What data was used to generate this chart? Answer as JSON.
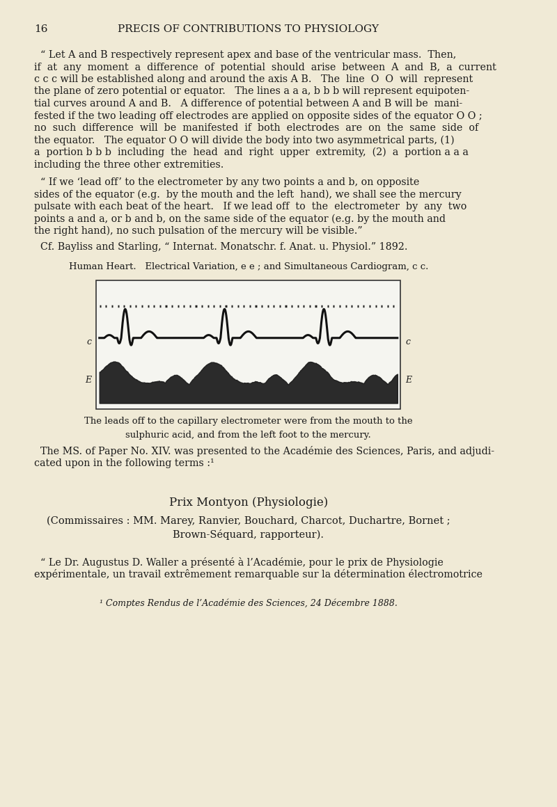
{
  "bg_color": "#f0ead6",
  "text_color": "#1a1a1a",
  "page_number": "16",
  "header": "PRECIS OF CONTRIBUTIONS TO PHYSIOLOGY",
  "para1": "\"Let A and B respectively represent apex and base of the ventricular mass.  Then,\nif  at  any  moment  a  difference  of  potential  should  arise  between  A  and  B,  a  current\nc c c will be established along and around the axis A B.   The  line  O  O  will  represent\nthe plane of zero potential or equator.   The lines a a a, b b b will represent equipoten-\ntial curves around A and B.   A difference of potential between A and B will be  mani-\nfested if the two leading off electrodes are applied on opposite sides of the equator O O ;\nno  such  difference  will  be  manifested  if  both  electrodes  are  on  the  same  side  of\nthe equator.   The equator O O will divide the body into two asymmetrical parts, (1)\na  portion b b b  including  the  head  and  right  upper  extremity,  (2)  a  portion a a a\nincluding the three other extremities.",
  "para2": "\"If we ‘lead off’ to the electrometer by any two points a and b, on opposite\nsides of the equator (e.g.  by the mouth and the left  hand), we shall see the mercury\npulsate with each beat of the heart.   If we lead off  to  the  electrometer  by  any  two\npoints a and a, or b and b, on the same side of the equator (e.g. by the mouth and\nthe right hand), no such pulsation of the mercury will be visible.\"",
  "para3": "Cf. Bayliss and Starling, “ Internat. Monatschr. f. Anat. u. Physiol.” 1892.",
  "fig_caption": "Human Heart.   Electrical Variation, e e ; and Simultaneous Cardiogram, c c.",
  "fig_note": "The leads off to the capillary electrometer were from the mouth to the\nsulphuric acid, and from the left foot to the mercury.",
  "para4": "The MS. of Paper No. XIV. was presented to the Académie des Sciences, Paris, and adjudi-\ncated upon in the following terms :¹",
  "center_title": "Prix Montyon (Physiologie)",
  "center_sub": "(Commissaires : MM. Marey, Ranvier, Bouchard, Charcot, Duchartre, Bornet ;\nBrown-Séquard, rapporteur).",
  "para5": "“ Le Dr. Augustus D. Waller a présenté à l’Académie, pour le prix de Physiologie\nexpérimentale, un travail extrêmement remarquable sur la détermination électromotrice",
  "footnote": "¹ Comptes Rendus de l’Académie des Sciences, 24 Décembre 1888."
}
